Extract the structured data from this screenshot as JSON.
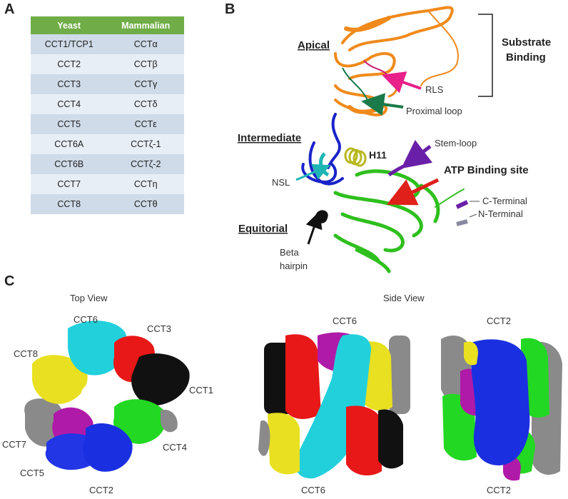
{
  "panel_a": {
    "letter": "A",
    "headers": [
      "Yeast",
      "Mammalian"
    ],
    "rows": [
      [
        "CCT1/TCP1",
        "CCTα"
      ],
      [
        "CCT2",
        "CCTβ"
      ],
      [
        "CCT3",
        "CCTγ"
      ],
      [
        "CCT4",
        "CCTδ"
      ],
      [
        "CCT5",
        "CCTε"
      ],
      [
        "CCT6A",
        "CCTζ-1"
      ],
      [
        "CCT6B",
        "CCTζ-2"
      ],
      [
        "CCT7",
        "CCTη"
      ],
      [
        "CCT8",
        "CCTθ"
      ]
    ],
    "header_color": "#70ad47"
  },
  "panel_b": {
    "letter": "B",
    "domain_labels": {
      "apical": "Apical",
      "intermediate": "Intermediate",
      "equitorial": "Equitorial"
    },
    "substrate_binding_line1": "Substrate",
    "substrate_binding_line2": "Binding",
    "rls": "RLS",
    "proximal_loop": "Proximal loop",
    "stem_loop": "Stem-loop",
    "h11": "H11",
    "atp_binding_site": "ATP Binding site",
    "nsl": "NSL",
    "c_terminal": "C-Terminal",
    "n_terminal": "N-Terminal",
    "beta_hairpin_line1": "Beta",
    "beta_hairpin_line2": "hairpin",
    "colors": {
      "apical": "#f08a1c",
      "intermediate": "#1a23c8",
      "equatorial": "#2fbf1e",
      "h11": "#b8b820",
      "nsl": "#1fb5b5",
      "stem_loop": "#6a1fa8",
      "atp_arrow": "#e0201a",
      "rls_arrow": "#e8208a",
      "proximal_arrow": "#1a7a4a"
    }
  },
  "panel_c": {
    "letter": "C",
    "top_view_title": "Top View",
    "side_view_title": "Side View",
    "top_view_labels": {
      "cct6": "CCT6",
      "cct3": "CCT3",
      "cct8": "CCT8",
      "cct1": "CCT1",
      "cct7": "CCT7",
      "cct4": "CCT4",
      "cct5": "CCT5",
      "cct2": "CCT2"
    },
    "side1_top": "CCT6",
    "side1_bottom": "CCT6",
    "side2_top": "CCT2",
    "side2_bottom": "CCT2",
    "subunit_colors": {
      "cct1": "#111111",
      "cct2": "#1a30e0",
      "cct3": "#e81818",
      "cct4": "#22d822",
      "cct5": "#2236e6",
      "cct6": "#22d0dc",
      "cct7": "#8a8a8a",
      "cct8": "#e8e020",
      "magenta": "#b01aa8"
    }
  }
}
